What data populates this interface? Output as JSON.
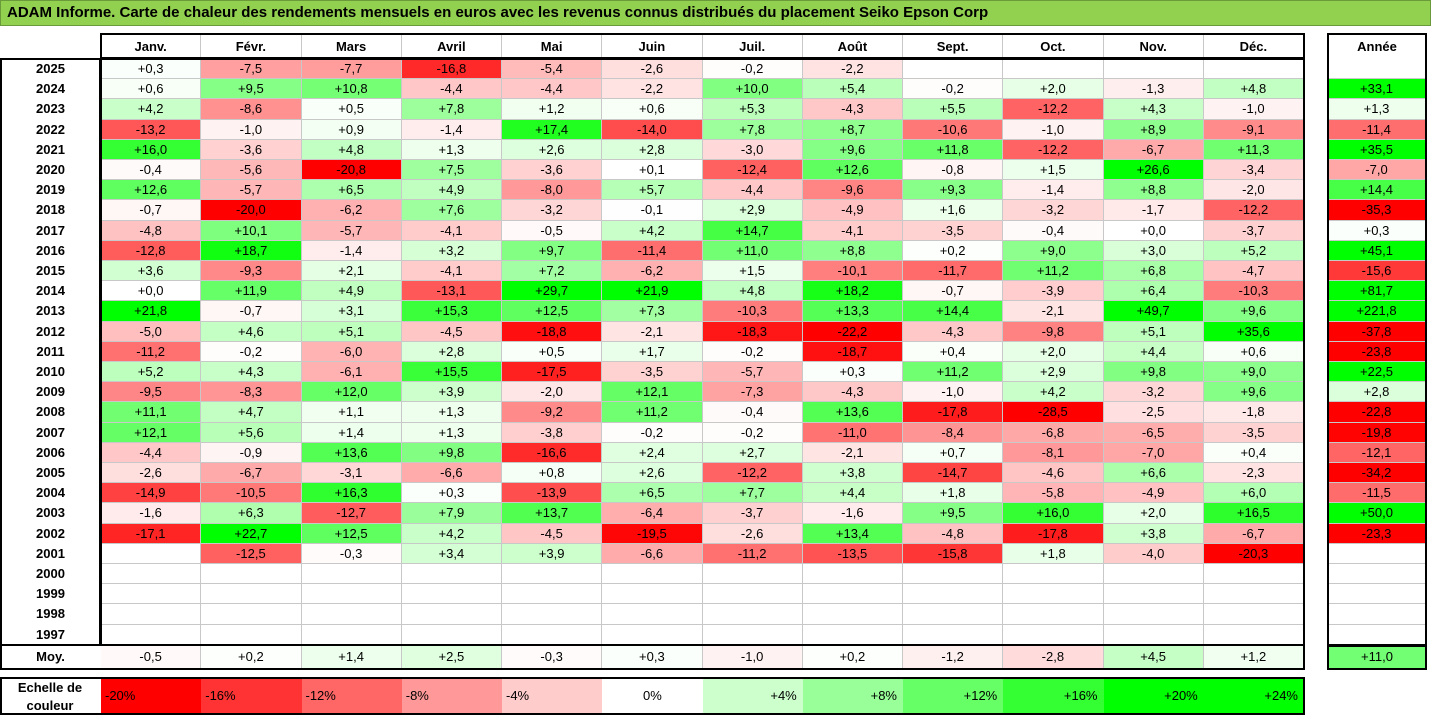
{
  "title": "ADAM Informe. Carte de chaleur des rendements mensuels en euros avec les revenus connus distribués du placement Seiko Epson Corp",
  "chart_data": {
    "type": "heatmap",
    "columns": [
      "Janv.",
      "Févr.",
      "Mars",
      "Avril",
      "Mai",
      "Juin",
      "Juil.",
      "Août",
      "Sept.",
      "Oct.",
      "Nov.",
      "Déc."
    ],
    "annual_header": "Année",
    "rows": [
      {
        "year": "2025",
        "values": [
          "+0,3",
          "-7,5",
          "-7,7",
          "-16,8",
          "-5,4",
          "-2,6",
          "-0,2",
          "-2,2",
          "",
          "",
          "",
          ""
        ],
        "annual": ""
      },
      {
        "year": "2024",
        "values": [
          "+0,6",
          "+9,5",
          "+10,8",
          "-4,4",
          "-4,4",
          "-2,2",
          "+10,0",
          "+5,4",
          "-0,2",
          "+2,0",
          "-1,3",
          "+4,8"
        ],
        "annual": "+33,1"
      },
      {
        "year": "2023",
        "values": [
          "+4,2",
          "-8,6",
          "+0,5",
          "+7,8",
          "+1,2",
          "+0,6",
          "+5,3",
          "-4,3",
          "+5,5",
          "-12,2",
          "+4,3",
          "-1,0"
        ],
        "annual": "+1,3"
      },
      {
        "year": "2022",
        "values": [
          "-13,2",
          "-1,0",
          "+0,9",
          "-1,4",
          "+17,4",
          "-14,0",
          "+7,8",
          "+8,7",
          "-10,6",
          "-1,0",
          "+8,9",
          "-9,1"
        ],
        "annual": "-11,4"
      },
      {
        "year": "2021",
        "values": [
          "+16,0",
          "-3,6",
          "+4,8",
          "+1,3",
          "+2,6",
          "+2,8",
          "-3,0",
          "+9,6",
          "+11,8",
          "-12,2",
          "-6,7",
          "+11,3"
        ],
        "annual": "+35,5"
      },
      {
        "year": "2020",
        "values": [
          "-0,4",
          "-5,6",
          "-20,8",
          "+7,5",
          "-3,6",
          "+0,1",
          "-12,4",
          "+12,6",
          "-0,8",
          "+1,5",
          "+26,6",
          "-3,4"
        ],
        "annual": "-7,0"
      },
      {
        "year": "2019",
        "values": [
          "+12,6",
          "-5,7",
          "+6,5",
          "+4,9",
          "-8,0",
          "+5,7",
          "-4,4",
          "-9,6",
          "+9,3",
          "-1,4",
          "+8,8",
          "-2,0"
        ],
        "annual": "+14,4"
      },
      {
        "year": "2018",
        "values": [
          "-0,7",
          "-20,0",
          "-6,2",
          "+7,6",
          "-3,2",
          "-0,1",
          "+2,9",
          "-4,9",
          "+1,6",
          "-3,2",
          "-1,7",
          "-12,2"
        ],
        "annual": "-35,3"
      },
      {
        "year": "2017",
        "values": [
          "-4,8",
          "+10,1",
          "-5,7",
          "-4,1",
          "-0,5",
          "+4,2",
          "+14,7",
          "-4,1",
          "-3,5",
          "-0,4",
          "+0,0",
          "-3,7"
        ],
        "annual": "+0,3"
      },
      {
        "year": "2016",
        "values": [
          "-12,8",
          "+18,7",
          "-1,4",
          "+3,2",
          "+9,7",
          "-11,4",
          "+11,0",
          "+8,8",
          "+0,2",
          "+9,0",
          "+3,0",
          "+5,2"
        ],
        "annual": "+45,1"
      },
      {
        "year": "2015",
        "values": [
          "+3,6",
          "-9,3",
          "+2,1",
          "-4,1",
          "+7,2",
          "-6,2",
          "+1,5",
          "-10,1",
          "-11,7",
          "+11,2",
          "+6,8",
          "-4,7"
        ],
        "annual": "-15,6"
      },
      {
        "year": "2014",
        "values": [
          "+0,0",
          "+11,9",
          "+4,9",
          "-13,1",
          "+29,7",
          "+21,9",
          "+4,8",
          "+18,2",
          "-0,7",
          "-3,9",
          "+6,4",
          "-10,3"
        ],
        "annual": "+81,7"
      },
      {
        "year": "2013",
        "values": [
          "+21,8",
          "-0,7",
          "+3,1",
          "+15,3",
          "+12,5",
          "+7,3",
          "-10,3",
          "+13,3",
          "+14,4",
          "-2,1",
          "+49,7",
          "+9,6"
        ],
        "annual": "+221,8"
      },
      {
        "year": "2012",
        "values": [
          "-5,0",
          "+4,6",
          "+5,1",
          "-4,5",
          "-18,8",
          "-2,1",
          "-18,3",
          "-22,2",
          "-4,3",
          "-9,8",
          "+5,1",
          "+35,6"
        ],
        "annual": "-37,8"
      },
      {
        "year": "2011",
        "values": [
          "-11,2",
          "-0,2",
          "-6,0",
          "+2,8",
          "+0,5",
          "+1,7",
          "-0,2",
          "-18,7",
          "+0,4",
          "+2,0",
          "+4,4",
          "+0,6"
        ],
        "annual": "-23,8"
      },
      {
        "year": "2010",
        "values": [
          "+5,2",
          "+4,3",
          "-6,1",
          "+15,5",
          "-17,5",
          "-3,5",
          "-5,7",
          "+0,3",
          "+11,2",
          "+2,9",
          "+9,8",
          "+9,0"
        ],
        "annual": "+22,5"
      },
      {
        "year": "2009",
        "values": [
          "-9,5",
          "-8,3",
          "+12,0",
          "+3,9",
          "-2,0",
          "+12,1",
          "-7,3",
          "-4,3",
          "-1,0",
          "+4,2",
          "-3,2",
          "+9,6"
        ],
        "annual": "+2,8"
      },
      {
        "year": "2008",
        "values": [
          "+11,1",
          "+4,7",
          "+1,1",
          "+1,3",
          "-9,2",
          "+11,2",
          "-0,4",
          "+13,6",
          "-17,8",
          "-28,5",
          "-2,5",
          "-1,8"
        ],
        "annual": "-22,8"
      },
      {
        "year": "2007",
        "values": [
          "+12,1",
          "+5,6",
          "+1,4",
          "+1,3",
          "-3,8",
          "-0,2",
          "-0,2",
          "-11,0",
          "-8,4",
          "-6,8",
          "-6,5",
          "-3,5"
        ],
        "annual": "-19,8"
      },
      {
        "year": "2006",
        "values": [
          "-4,4",
          "-0,9",
          "+13,6",
          "+9,8",
          "-16,6",
          "+2,4",
          "+2,7",
          "-2,1",
          "+0,7",
          "-8,1",
          "-7,0",
          "+0,4"
        ],
        "annual": "-12,1"
      },
      {
        "year": "2005",
        "values": [
          "-2,6",
          "-6,7",
          "-3,1",
          "-6,6",
          "+0,8",
          "+2,6",
          "-12,2",
          "+3,8",
          "-14,7",
          "-4,6",
          "+6,6",
          "-2,3"
        ],
        "annual": "-34,2"
      },
      {
        "year": "2004",
        "values": [
          "-14,9",
          "-10,5",
          "+16,3",
          "+0,3",
          "-13,9",
          "+6,5",
          "+7,7",
          "+4,4",
          "+1,8",
          "-5,8",
          "-4,9",
          "+6,0"
        ],
        "annual": "-11,5"
      },
      {
        "year": "2003",
        "values": [
          "-1,6",
          "+6,3",
          "-12,7",
          "+7,9",
          "+13,7",
          "-6,4",
          "-3,7",
          "-1,6",
          "+9,5",
          "+16,0",
          "+2,0",
          "+16,5"
        ],
        "annual": "+50,0"
      },
      {
        "year": "2002",
        "values": [
          "-17,1",
          "+22,7",
          "+12,5",
          "+4,2",
          "-4,5",
          "-19,5",
          "-2,6",
          "+13,4",
          "-4,8",
          "-17,8",
          "+3,8",
          "-6,7"
        ],
        "annual": "-23,3"
      },
      {
        "year": "2001",
        "values": [
          "",
          "-12,5",
          "-0,3",
          "+3,4",
          "+3,9",
          "-6,6",
          "-11,2",
          "-13,5",
          "-15,8",
          "+1,8",
          "-4,0",
          "-20,3"
        ],
        "annual": ""
      },
      {
        "year": "2000",
        "values": [
          "",
          "",
          "",
          "",
          "",
          "",
          "",
          "",
          "",
          "",
          "",
          ""
        ],
        "annual": ""
      },
      {
        "year": "1999",
        "values": [
          "",
          "",
          "",
          "",
          "",
          "",
          "",
          "",
          "",
          "",
          "",
          ""
        ],
        "annual": ""
      },
      {
        "year": "1998",
        "values": [
          "",
          "",
          "",
          "",
          "",
          "",
          "",
          "",
          "",
          "",
          "",
          ""
        ],
        "annual": ""
      },
      {
        "year": "1997",
        "values": [
          "",
          "",
          "",
          "",
          "",
          "",
          "",
          "",
          "",
          "",
          "",
          ""
        ],
        "annual": ""
      }
    ],
    "average": {
      "label": "Moy.",
      "values": [
        "-0,5",
        "+0,2",
        "+1,4",
        "+2,5",
        "-0,3",
        "+0,3",
        "-1,0",
        "+0,2",
        "-1,2",
        "-2,8",
        "+4,5",
        "+1,2"
      ],
      "annual": "+11,0"
    },
    "color_scale": {
      "label": "Echelle de couleur",
      "stops": [
        "-20%",
        "-16%",
        "-12%",
        "-8%",
        "-4%",
        "0%",
        "+4%",
        "+8%",
        "+12%",
        "+16%",
        "+20%",
        "+24%"
      ]
    },
    "colors": {
      "title_bg": "#92D050",
      "neg_max": "#FF0000",
      "pos_max": "#00FF00",
      "neutral": "#FFFFFF"
    }
  }
}
